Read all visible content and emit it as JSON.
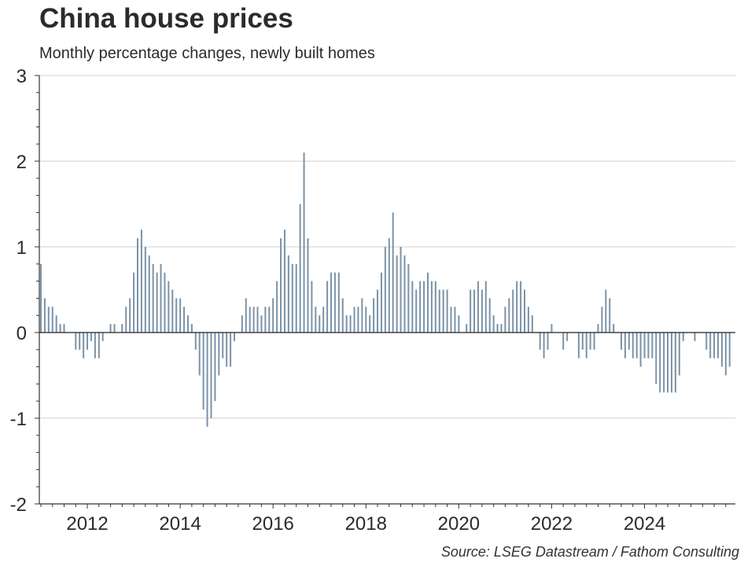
{
  "chart_data": {
    "type": "bar",
    "title": "China house prices",
    "subtitle": "Monthly percentage changes, newly built homes",
    "source": "Source: LSEG Datastream / Fathom Consulting",
    "xlabel": "",
    "ylabel": "",
    "ylim": [
      -2,
      3
    ],
    "yticks": [
      3,
      2,
      1,
      0,
      -1,
      -2
    ],
    "ytick_labels": [
      "3",
      "2",
      "1",
      "0",
      "-1",
      "-2"
    ],
    "xtick_labels": [
      "2012",
      "2014",
      "2016",
      "2018",
      "2020",
      "2022",
      "2024"
    ],
    "x_start": "2011-01",
    "x_end": "2025-11",
    "frequency": "monthly",
    "grid": "horizontal at integer values",
    "legend": "none",
    "bar_color": "#7b93a8",
    "series": [
      {
        "name": "Monthly % change, newly built homes",
        "start": "2011-01",
        "values": [
          0.8,
          0.4,
          0.3,
          0.3,
          0.2,
          0.1,
          0.1,
          0,
          0,
          -0.2,
          -0.2,
          -0.3,
          -0.2,
          -0.1,
          -0.3,
          -0.3,
          -0.1,
          0,
          0.1,
          0.1,
          0,
          0.1,
          0.3,
          0.4,
          0.7,
          1.1,
          1.2,
          1.0,
          0.9,
          0.8,
          0.7,
          0.8,
          0.7,
          0.6,
          0.5,
          0.4,
          0.4,
          0.3,
          0.2,
          0.1,
          -0.2,
          -0.5,
          -0.9,
          -1.1,
          -1.0,
          -0.8,
          -0.5,
          -0.3,
          -0.4,
          -0.4,
          -0.1,
          0,
          0.2,
          0.4,
          0.3,
          0.3,
          0.3,
          0.2,
          0.3,
          0.3,
          0.4,
          0.6,
          1.1,
          1.2,
          0.9,
          0.8,
          0.8,
          1.5,
          2.1,
          1.1,
          0.6,
          0.3,
          0.2,
          0.3,
          0.6,
          0.7,
          0.7,
          0.7,
          0.4,
          0.2,
          0.2,
          0.3,
          0.3,
          0.4,
          0.3,
          0.2,
          0.4,
          0.5,
          0.7,
          1.0,
          1.1,
          1.4,
          0.9,
          1.0,
          0.9,
          0.8,
          0.6,
          0.5,
          0.6,
          0.6,
          0.7,
          0.6,
          0.6,
          0.5,
          0.5,
          0.5,
          0.3,
          0.3,
          0.2,
          0,
          0.1,
          0.5,
          0.5,
          0.6,
          0.5,
          0.6,
          0.4,
          0.2,
          0.1,
          0.1,
          0.3,
          0.4,
          0.5,
          0.6,
          0.6,
          0.5,
          0.3,
          0.2,
          0,
          -0.2,
          -0.3,
          -0.2,
          0.1,
          0,
          0,
          -0.2,
          -0.1,
          0,
          0,
          -0.3,
          -0.2,
          -0.3,
          -0.2,
          -0.2,
          0.1,
          0.3,
          0.5,
          0.4,
          0.1,
          0,
          -0.2,
          -0.3,
          -0.2,
          -0.3,
          -0.3,
          -0.4,
          -0.3,
          -0.3,
          -0.3,
          -0.6,
          -0.7,
          -0.7,
          -0.7,
          -0.7,
          -0.7,
          -0.5,
          -0.1,
          0,
          0,
          -0.1,
          0,
          0,
          -0.2,
          -0.3,
          -0.3,
          -0.3,
          -0.4,
          -0.5,
          -0.4
        ]
      }
    ]
  }
}
